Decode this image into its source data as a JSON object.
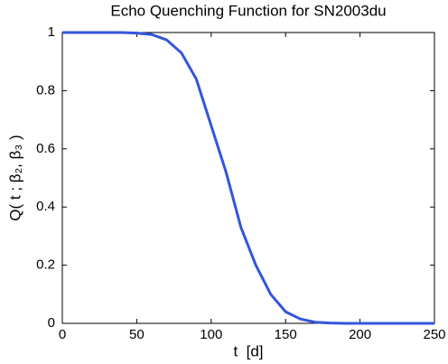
{
  "chart_data": {
    "type": "line",
    "title": "Echo Quenching Function for SN2003du",
    "xlabel": "t  [d]",
    "ylabel": "Q( t ; β₂, β₃ )",
    "x": [
      0,
      10,
      20,
      30,
      40,
      50,
      60,
      70,
      80,
      90,
      100,
      110,
      120,
      130,
      140,
      150,
      160,
      170,
      180,
      190,
      200,
      210,
      220,
      230,
      240,
      250
    ],
    "series": [
      {
        "name": "Q",
        "color": "#3355dd",
        "values": [
          1,
          1,
          1,
          1,
          1,
          0.998,
          0.993,
          0.975,
          0.93,
          0.84,
          0.68,
          0.52,
          0.33,
          0.2,
          0.1,
          0.04,
          0.015,
          0.004,
          0.001,
          0,
          0,
          0,
          0,
          0,
          0,
          0
        ]
      }
    ],
    "xlim": [
      0,
      250
    ],
    "xticks": [
      0,
      50,
      100,
      150,
      200,
      250
    ],
    "ylim": [
      0,
      1
    ],
    "yticks": [
      0,
      0.2,
      0.4,
      0.6,
      0.8,
      1
    ],
    "grid": false
  }
}
